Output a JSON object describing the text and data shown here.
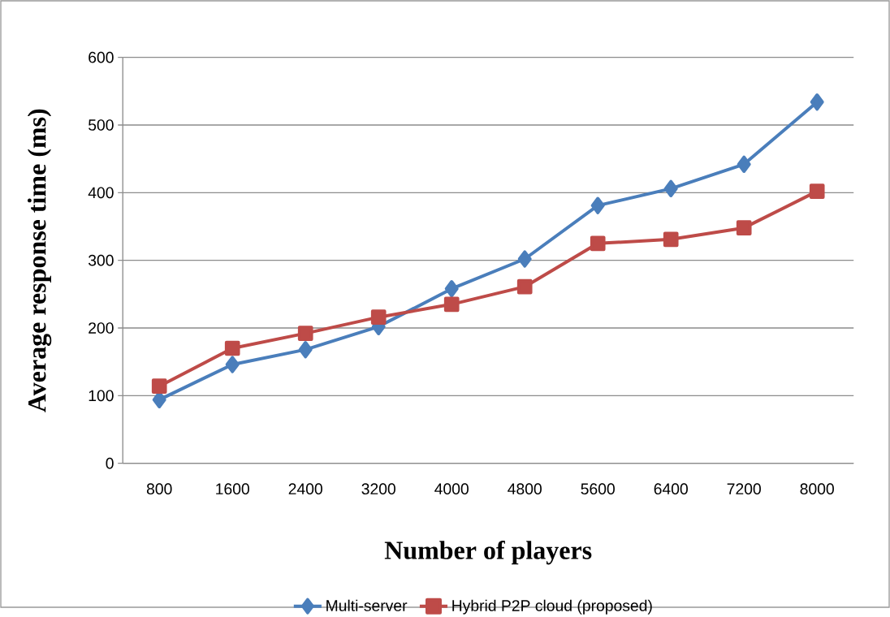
{
  "chart_data": {
    "type": "line",
    "xlabel": "Number of players",
    "ylabel": "Average  response time (ms)",
    "categories": [
      "800",
      "1600",
      "2400",
      "3200",
      "4000",
      "4800",
      "5600",
      "6400",
      "7200",
      "8000"
    ],
    "series": [
      {
        "name": "Multi-server",
        "color": "#4a7ebb",
        "marker": "diamond",
        "values": [
          94,
          146,
          168,
          202,
          258,
          302,
          381,
          406,
          442,
          534
        ]
      },
      {
        "name": "Hybrid P2P cloud (proposed)",
        "color": "#be4b48",
        "marker": "square",
        "values": [
          114,
          170,
          192,
          216,
          235,
          261,
          325,
          331,
          348,
          402
        ]
      }
    ],
    "ylim": [
      0,
      600
    ],
    "yticks": [
      0,
      100,
      200,
      300,
      400,
      500,
      600
    ],
    "grid": "y",
    "legend": "bottom",
    "line_style": "solid"
  }
}
